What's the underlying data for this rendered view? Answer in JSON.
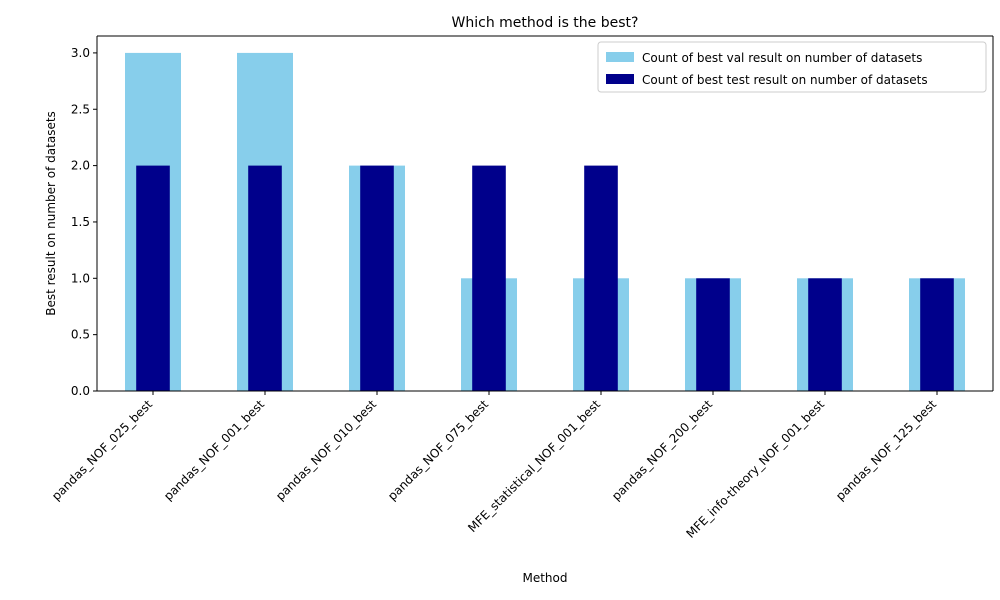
{
  "chart_data": {
    "type": "bar",
    "title": "Which method is the best?",
    "xlabel": "Method",
    "ylabel": "Best result on number of datasets",
    "categories": [
      "pandas_NOF_025_best",
      "pandas_NOF_001_best",
      "pandas_NOF_010_best",
      "pandas_NOF_075_best",
      "MFE_statistical_NOF_001_best",
      "pandas_NOF_200_best",
      "MFE_info-theory_NOF_001_best",
      "pandas_NOF_125_best"
    ],
    "series": [
      {
        "name": "Count of best val result on number of datasets",
        "values": [
          3,
          3,
          2,
          1,
          1,
          1,
          1,
          1
        ],
        "color": "#87CEEB"
      },
      {
        "name": "Count of best test result on number of datasets",
        "values": [
          2,
          2,
          2,
          2,
          2,
          1,
          1,
          1
        ],
        "color": "#00008B"
      }
    ],
    "ylim": [
      0,
      3.15
    ],
    "yticks": [
      "0.0",
      "0.5",
      "1.0",
      "1.5",
      "2.0",
      "2.5",
      "3.0"
    ],
    "grid": false,
    "legend_position": "top-right"
  }
}
